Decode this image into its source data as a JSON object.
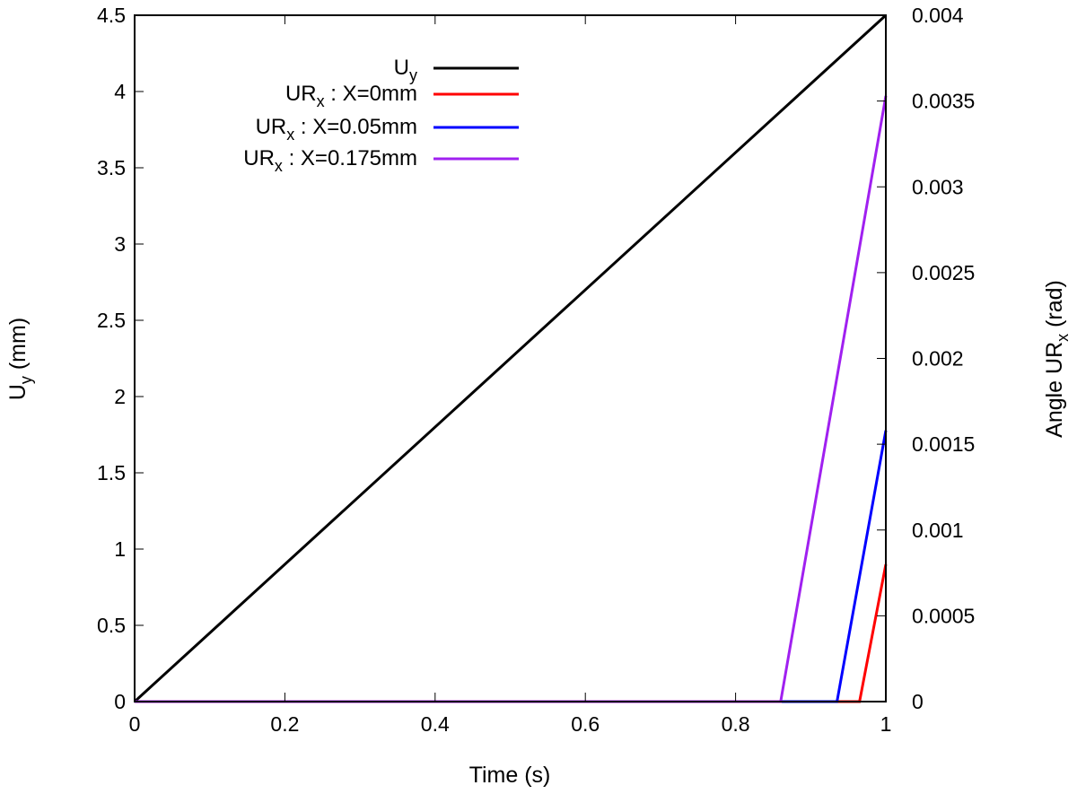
{
  "chart_data": {
    "type": "line",
    "xlabel": "Time (s)",
    "ylabel": {
      "base": "U",
      "sub": "y",
      "suffix": " (mm)"
    },
    "y2label": {
      "prefix": "Angle UR",
      "sub": "x",
      "suffix": " (rad)"
    },
    "xlim": [
      0,
      1
    ],
    "ylim": [
      0,
      4.5
    ],
    "y2lim": [
      0,
      0.004
    ],
    "x_ticks": [
      "0",
      "0.2",
      "0.4",
      "0.6",
      "0.8",
      "1"
    ],
    "y_ticks": [
      "0",
      "0.5",
      "1",
      "1.5",
      "2",
      "2.5",
      "3",
      "3.5",
      "4",
      "4.5"
    ],
    "y2_ticks": [
      "0",
      "0.0005",
      "0.001",
      "0.0015",
      "0.002",
      "0.0025",
      "0.003",
      "0.0035",
      "0.004"
    ],
    "legend_position": "top-left",
    "series": [
      {
        "name": {
          "base": "U",
          "sub": "y",
          "rest": ""
        },
        "axis": "y",
        "color": "#000000",
        "points": [
          [
            0,
            0
          ],
          [
            1,
            4.5
          ]
        ]
      },
      {
        "name": {
          "base": "UR",
          "sub": "x",
          "rest": " : X=0mm"
        },
        "axis": "y2",
        "color": "#ff0000",
        "points": [
          [
            0,
            0
          ],
          [
            0.965,
            0
          ],
          [
            1,
            0.0008
          ]
        ]
      },
      {
        "name": {
          "base": "UR",
          "sub": "x",
          "rest": " : X=0.05mm"
        },
        "axis": "y2",
        "color": "#0000ff",
        "points": [
          [
            0,
            0
          ],
          [
            0.935,
            0
          ],
          [
            1,
            0.00158
          ]
        ]
      },
      {
        "name": {
          "base": "UR",
          "sub": "x",
          "rest": " : X=0.175mm"
        },
        "axis": "y2",
        "color": "#a020f0",
        "points": [
          [
            0,
            0
          ],
          [
            0.86,
            0
          ],
          [
            1,
            0.00353
          ]
        ]
      }
    ]
  }
}
